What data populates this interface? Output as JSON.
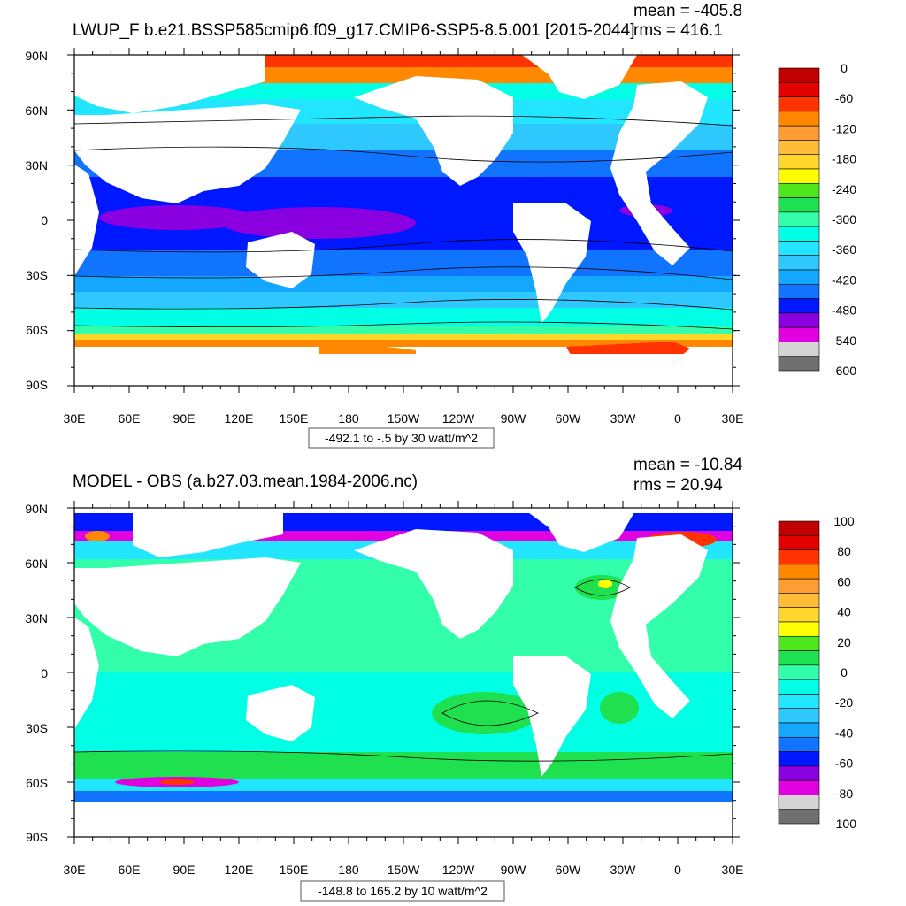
{
  "panels": [
    {
      "title": "LWUP_F b.e21.BSSP585cmip6.f09_g17.CMIP6-SSP5-8.5.001 [2015-2044]",
      "mean": "mean = -405.8",
      "rms": "rms = 416.1",
      "range_caption": "-492.1 to -.5 by 30 watt/m^2",
      "colorbar": {
        "labels": [
          "0",
          "-60",
          "-120",
          "-180",
          "-240",
          "-300",
          "-360",
          "-420",
          "-480",
          "-540",
          "-600"
        ],
        "colors": [
          "#c10000",
          "#e50000",
          "#ff3300",
          "#ff8800",
          "#ff9c33",
          "#ffbc38",
          "#ffd62a",
          "#ffff00",
          "#4de51c",
          "#1fe04f",
          "#33ffaa",
          "#00ffe5",
          "#22e5ff",
          "#2ec8ff",
          "#13a7ff",
          "#1074ff",
          "#0018ff",
          "#8a00e0",
          "#e000e0",
          "#d4d4d4",
          "#707070"
        ]
      }
    },
    {
      "title": "MODEL - OBS (a.b27.03.mean.1984-2006.nc)",
      "mean": "mean = -10.84",
      "rms": "rms = 20.94",
      "range_caption": "-148.8 to 165.2 by 10 watt/m^2",
      "colorbar": {
        "labels": [
          "100",
          "80",
          "60",
          "40",
          "20",
          "0",
          "-20",
          "-40",
          "-60",
          "-80",
          "-100"
        ],
        "colors": [
          "#c10000",
          "#e50000",
          "#ff3300",
          "#ff8800",
          "#ff9c33",
          "#ffbc38",
          "#ffd62a",
          "#ffff00",
          "#4de51c",
          "#1fe04f",
          "#33ffaa",
          "#00ffe5",
          "#22e5ff",
          "#2ec8ff",
          "#13a7ff",
          "#1074ff",
          "#0018ff",
          "#8a00e0",
          "#e000e0",
          "#d4d4d4",
          "#707070"
        ]
      }
    }
  ],
  "axes": {
    "lat_labels": [
      "90N",
      "60N",
      "30N",
      "0",
      "30S",
      "60S",
      "90S"
    ],
    "lon_labels": [
      "30E",
      "60E",
      "90E",
      "120E",
      "150E",
      "180",
      "150W",
      "120W",
      "90W",
      "60W",
      "30W",
      "0",
      "30E"
    ]
  }
}
